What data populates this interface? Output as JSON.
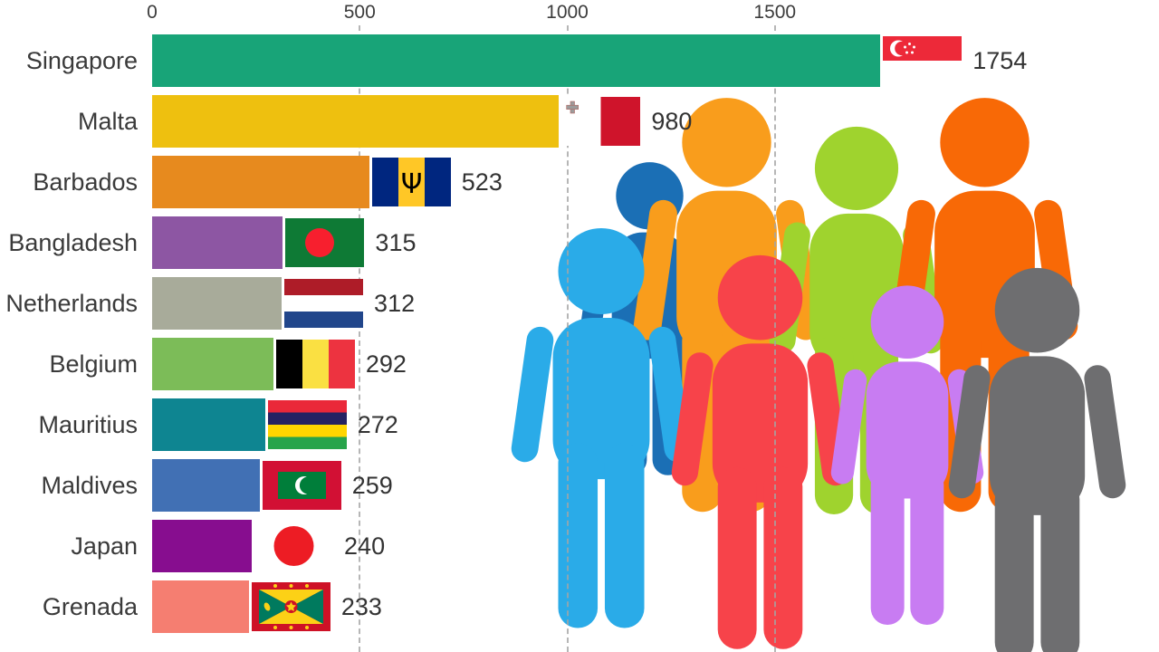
{
  "chart_data": {
    "type": "bar",
    "orientation": "horizontal",
    "title": "",
    "x_ticks": [
      0,
      500,
      1000,
      1500
    ],
    "x_axis_visible_max": 2400,
    "grid": "vertical-dashed",
    "legend": "none",
    "categories": [
      "Singapore",
      "Malta",
      "Barbados",
      "Bangladesh",
      "Netherlands",
      "Belgium",
      "Mauritius",
      "Maldives",
      "Japan",
      "Grenada"
    ],
    "values": [
      1754,
      980,
      523,
      315,
      312,
      292,
      272,
      259,
      240,
      233
    ],
    "rows": [
      {
        "country": "Singapore",
        "value": 1754,
        "color": "#18a478",
        "flag": "flag-singapore"
      },
      {
        "country": "Malta",
        "value": 980,
        "color": "#eec00f",
        "flag": "flag-malta"
      },
      {
        "country": "Barbados",
        "value": 523,
        "color": "#e78a1e",
        "flag": "flag-barbados"
      },
      {
        "country": "Bangladesh",
        "value": 315,
        "color": "#8d56a3",
        "flag": "flag-bangladesh"
      },
      {
        "country": "Netherlands",
        "value": 312,
        "color": "#a8ab9a",
        "flag": "flag-netherlands"
      },
      {
        "country": "Belgium",
        "value": 292,
        "color": "#7cbc58",
        "flag": "flag-belgium"
      },
      {
        "country": "Mauritius",
        "value": 272,
        "color": "#0e8591",
        "flag": "flag-mauritius"
      },
      {
        "country": "Maldives",
        "value": 259,
        "color": "#4170b4",
        "flag": "flag-maldives"
      },
      {
        "country": "Japan",
        "value": 240,
        "color": "#870d8f",
        "flag": "flag-japan"
      },
      {
        "country": "Grenada",
        "value": 233,
        "color": "#f57e71",
        "flag": "flag-grenada"
      }
    ]
  },
  "illustration": {
    "name": "crowd-of-people",
    "figures": [
      {
        "name": "person-dark-blue",
        "color": "#1b6fb5"
      },
      {
        "name": "person-orange",
        "color": "#f99d1c"
      },
      {
        "name": "person-yellow-green",
        "color": "#9fd32e"
      },
      {
        "name": "person-orange-red",
        "color": "#f86906"
      },
      {
        "name": "person-light-blue",
        "color": "#2aabe8"
      },
      {
        "name": "person-red",
        "color": "#f7434a"
      },
      {
        "name": "person-violet",
        "color": "#c87cf2"
      },
      {
        "name": "person-gray",
        "color": "#6e6e70"
      }
    ]
  },
  "colors": {
    "grid": "#a5a5a5",
    "label_text": "#3a3a3a",
    "value_text": "#333333",
    "axis_text": "#3c3c3c",
    "background": "#ffffff"
  }
}
